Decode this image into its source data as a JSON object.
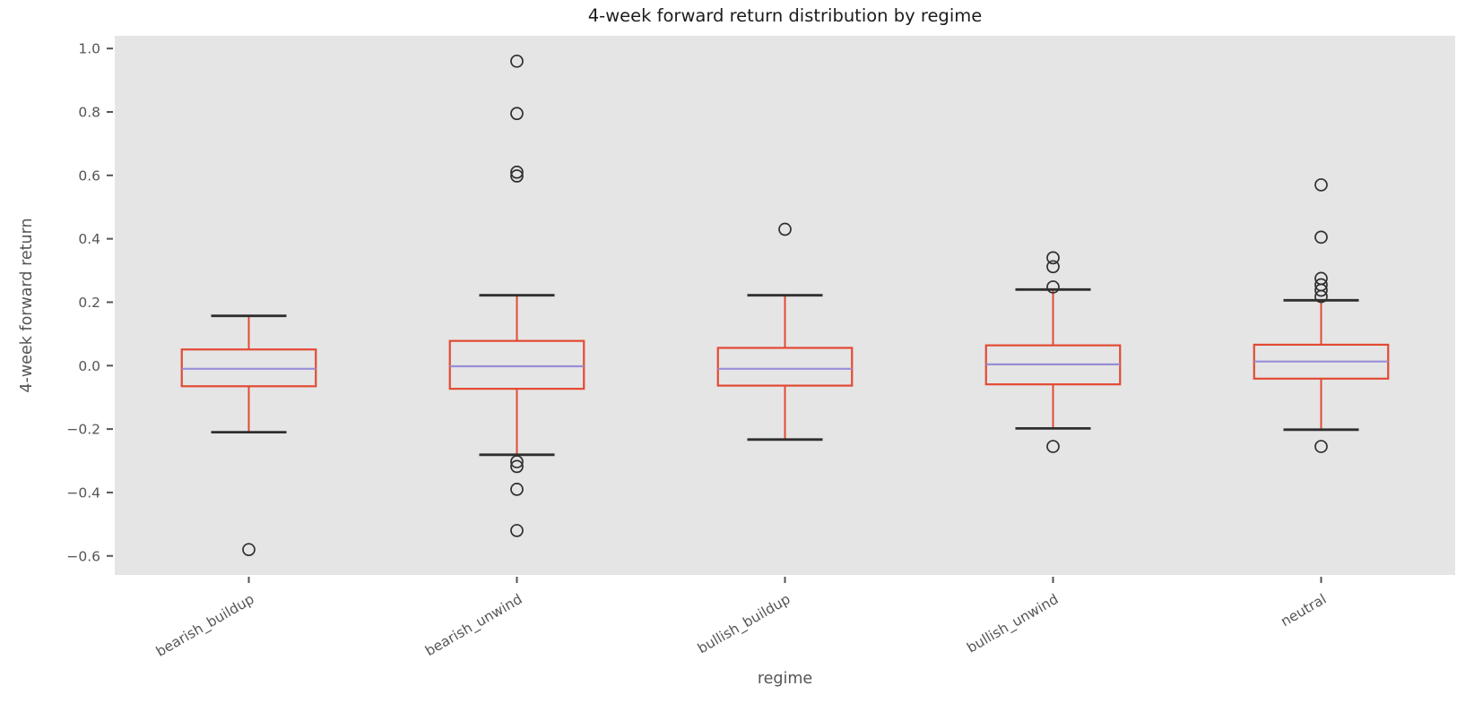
{
  "chart_data": {
    "type": "boxplot",
    "title": "4-week forward return distribution by regime",
    "xlabel": "regime",
    "ylabel": "4-week forward return",
    "categories": [
      "bearish_buildup",
      "bearish_unwind",
      "bullish_buildup",
      "bullish_unwind",
      "neutral"
    ],
    "ylim": [
      -0.66,
      1.04
    ],
    "yticks": [
      {
        "value": 1.0,
        "label": "1.0"
      },
      {
        "value": 0.8,
        "label": "0.8"
      },
      {
        "value": 0.6,
        "label": "0.6"
      },
      {
        "value": 0.4,
        "label": "0.4"
      },
      {
        "value": 0.2,
        "label": "0.2"
      },
      {
        "value": 0.0,
        "label": "0.0"
      },
      {
        "value": -0.2,
        "label": "−0.2"
      },
      {
        "value": -0.4,
        "label": "−0.4"
      },
      {
        "value": -0.6,
        "label": "−0.6"
      }
    ],
    "grid": false,
    "legend": null,
    "series": [
      {
        "name": "bearish_buildup",
        "whisker_low": -0.21,
        "q1": -0.065,
        "median": -0.01,
        "q3": 0.051,
        "whisker_high": 0.157,
        "fliers": [
          -0.58
        ]
      },
      {
        "name": "bearish_unwind",
        "whisker_low": -0.281,
        "q1": -0.073,
        "median": -0.002,
        "q3": 0.078,
        "whisker_high": 0.222,
        "fliers": [
          0.96,
          0.795,
          0.61,
          0.598,
          -0.303,
          -0.318,
          -0.39,
          -0.52
        ]
      },
      {
        "name": "bullish_buildup",
        "whisker_low": -0.233,
        "q1": -0.063,
        "median": -0.01,
        "q3": 0.056,
        "whisker_high": 0.222,
        "fliers": [
          0.43
        ]
      },
      {
        "name": "bullish_unwind",
        "whisker_low": -0.198,
        "q1": -0.059,
        "median": 0.004,
        "q3": 0.064,
        "whisker_high": 0.24,
        "fliers": [
          0.34,
          0.312,
          0.248,
          -0.255
        ]
      },
      {
        "name": "neutral",
        "whisker_low": -0.202,
        "q1": -0.041,
        "median": 0.013,
        "q3": 0.066,
        "whisker_high": 0.206,
        "fliers": [
          0.57,
          0.405,
          0.275,
          0.255,
          0.238,
          0.218,
          -0.255
        ]
      }
    ],
    "colors": {
      "plot_background": "#E5E5E5",
      "figure_background": "#FFFFFF",
      "box_edge": "#E24A33",
      "whisker": "#E24A33",
      "median": "#988ED5",
      "cap": "#2F2F2F",
      "flier_edge": "#2F2F2F",
      "tick_text": "#555555",
      "title_text": "#1C1C1C"
    }
  }
}
